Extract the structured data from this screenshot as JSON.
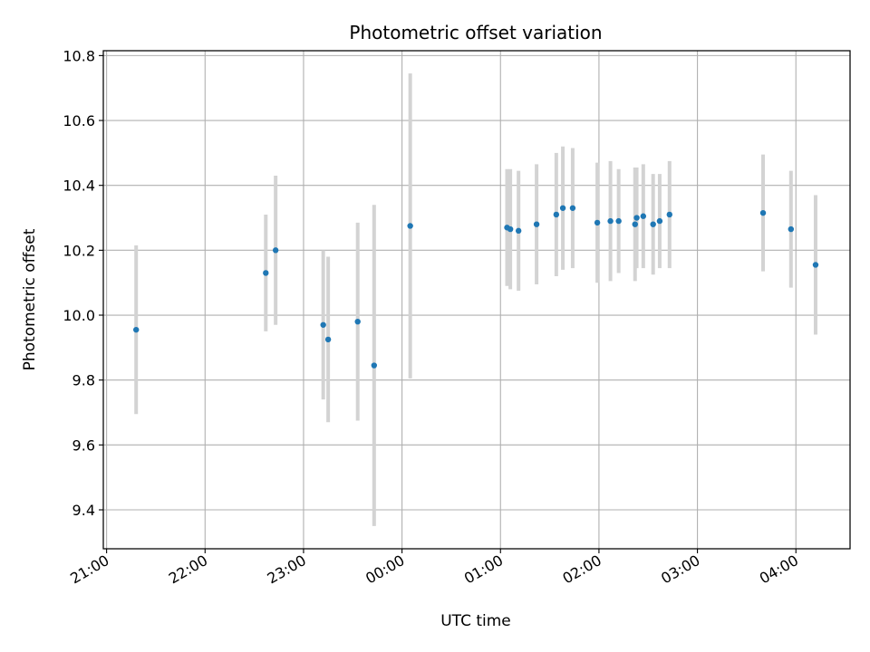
{
  "chart_data": {
    "type": "scatter",
    "title": "Photometric offset variation",
    "xlabel": "UTC time",
    "ylabel": "Photometric offset",
    "x_axis_type": "time",
    "xlim": [
      "20:58",
      "04:33"
    ],
    "ylim": [
      9.28,
      10.815
    ],
    "x_ticks": [
      "21:00",
      "22:00",
      "23:00",
      "00:00",
      "01:00",
      "02:00",
      "03:00",
      "04:00"
    ],
    "y_ticks": [
      9.4,
      9.6,
      9.8,
      10.0,
      10.2,
      10.4,
      10.6,
      10.8
    ],
    "grid": true,
    "point_color": "#1f77b4",
    "errorbar_color": "#d3d3d3",
    "points": [
      {
        "x": "21:18",
        "y": 9.955,
        "err": 0.26
      },
      {
        "x": "22:37",
        "y": 10.13,
        "err": 0.18
      },
      {
        "x": "22:43",
        "y": 10.2,
        "err": 0.23
      },
      {
        "x": "23:12",
        "y": 9.97,
        "err": 0.23
      },
      {
        "x": "23:15",
        "y": 9.925,
        "err": 0.255
      },
      {
        "x": "23:33",
        "y": 9.98,
        "err": 0.305
      },
      {
        "x": "23:43",
        "y": 9.845,
        "err": 0.495
      },
      {
        "x": "00:05",
        "y": 10.275,
        "err": 0.47
      },
      {
        "x": "01:04",
        "y": 10.27,
        "err": 0.18
      },
      {
        "x": "01:06",
        "y": 10.265,
        "err": 0.185
      },
      {
        "x": "01:11",
        "y": 10.26,
        "err": 0.185
      },
      {
        "x": "01:22",
        "y": 10.28,
        "err": 0.185
      },
      {
        "x": "01:34",
        "y": 10.31,
        "err": 0.19
      },
      {
        "x": "01:38",
        "y": 10.33,
        "err": 0.19
      },
      {
        "x": "01:44",
        "y": 10.33,
        "err": 0.185
      },
      {
        "x": "01:59",
        "y": 10.285,
        "err": 0.185
      },
      {
        "x": "02:07",
        "y": 10.29,
        "err": 0.185
      },
      {
        "x": "02:12",
        "y": 10.29,
        "err": 0.16
      },
      {
        "x": "02:22",
        "y": 10.28,
        "err": 0.175
      },
      {
        "x": "02:23",
        "y": 10.3,
        "err": 0.155
      },
      {
        "x": "02:27",
        "y": 10.305,
        "err": 0.16
      },
      {
        "x": "02:33",
        "y": 10.28,
        "err": 0.155
      },
      {
        "x": "02:37",
        "y": 10.29,
        "err": 0.145
      },
      {
        "x": "02:43",
        "y": 10.31,
        "err": 0.165
      },
      {
        "x": "03:40",
        "y": 10.315,
        "err": 0.18
      },
      {
        "x": "03:57",
        "y": 10.265,
        "err": 0.18
      },
      {
        "x": "04:12",
        "y": 10.155,
        "err": 0.215
      }
    ]
  }
}
